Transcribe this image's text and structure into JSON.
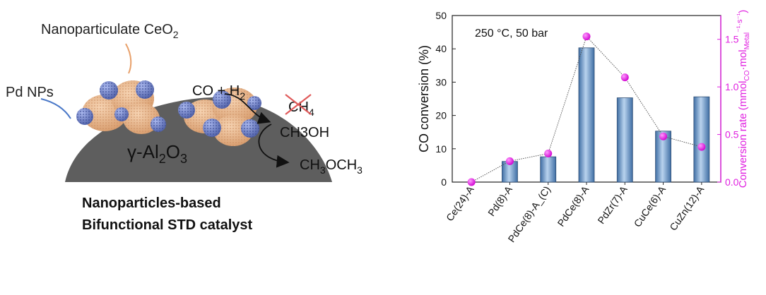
{
  "scheme": {
    "ceo2_label": "Nanoparticulate CeO",
    "ceo2_sub": "2",
    "pd_label": "Pd NPs",
    "feed_label_pre": "CO + H",
    "feed_sub": "2",
    "ch4_label": "CH",
    "ch4_sub": "4",
    "methanol_label": "CH3OH",
    "dme_label_pre": "CH",
    "dme_sub": "3",
    "dme_label_post": "OCH",
    "dme_sub2": "3",
    "support_label_pre": "γ-Al",
    "support_sub1": "2",
    "support_mid": "O",
    "support_sub2": "3",
    "caption_line1": "Nanoparticles-based",
    "caption_line2": "Bifunctional STD catalyst",
    "colors": {
      "ceo2_leader": "#e8a06a",
      "pd_leader": "#4a78c8",
      "alumina": "#5f5f5f",
      "ceria": "#e7b78d",
      "pd": "#6d7fc6"
    }
  },
  "chart_data": {
    "type": "bar",
    "annotation": "250 °C, 50 bar",
    "categories": [
      "Ce(24)-A",
      "Pd(8)-A",
      "PdCe(8)-A_(C)",
      "PdCe(8)-A",
      "PdZr(7)-A",
      "CuCe(6)-A",
      "CuZn(12)-A"
    ],
    "series": [
      {
        "name": "CO conversion",
        "axis": "left",
        "kind": "bar",
        "values": [
          0,
          6.2,
          7.6,
          40.3,
          25.3,
          15.3,
          25.6
        ]
      },
      {
        "name": "Conversion rate",
        "axis": "right",
        "kind": "line-markers",
        "values": [
          0.0,
          0.22,
          0.3,
          1.53,
          1.1,
          0.48,
          0.37
        ]
      }
    ],
    "ylabel": "CO conversion (%)",
    "ylim": [
      0,
      50
    ],
    "yticks": [
      "0",
      "10",
      "20",
      "30",
      "40",
      "50"
    ],
    "y2label_parts": {
      "a": "Conversion rate (mmol",
      "b": "CO",
      "c": "·mol",
      "d": "Metal",
      "e": "⁻¹·s",
      "f": "⁻¹",
      "g": ")"
    },
    "y2lim": [
      0,
      1.75
    ],
    "y2ticks": [
      "0.0",
      "0.5",
      "1.0",
      "1.5"
    ],
    "colors": {
      "bar": "#7fa9d6",
      "bar_edge": "#2e4d73",
      "rate": "#e020e0",
      "line": "#555555"
    }
  }
}
